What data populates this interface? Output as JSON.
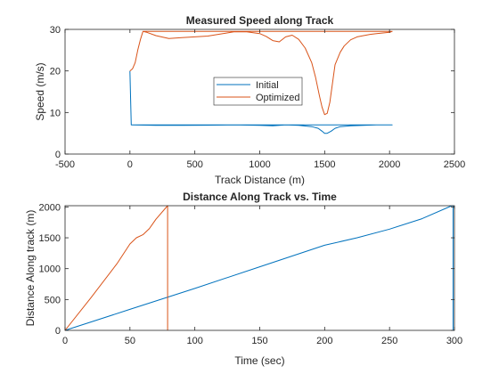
{
  "figure": {
    "background": "#ffffff",
    "colors": {
      "initial": "#0072BD",
      "optimized": "#D95319",
      "axis": "#262626"
    }
  },
  "chart_data": [
    {
      "type": "line",
      "title": "Measured Speed along Track",
      "xlabel": "Track Distance (m)",
      "ylabel": "Speed (m/s)",
      "xlim": [
        -500,
        2500
      ],
      "ylim": [
        0,
        30
      ],
      "xticks": [
        -500,
        0,
        500,
        1000,
        1500,
        2000,
        2500
      ],
      "yticks": [
        0,
        10,
        20,
        30
      ],
      "grid": false,
      "legend": {
        "placement": "center",
        "entries": [
          "Initial",
          "Optimized"
        ]
      },
      "series": [
        {
          "name": "Initial",
          "color": "#0072BD",
          "x": [
            0,
            10,
            2020,
            10,
            200,
            400,
            600,
            800,
            1000,
            1100,
            1200,
            1300,
            1400,
            1450,
            1480,
            1500,
            1520,
            1550,
            1580,
            1620,
            1700,
            1800,
            1900,
            2020
          ],
          "y": [
            20,
            7,
            7,
            7,
            6.9,
            6.9,
            6.95,
            7,
            6.9,
            6.8,
            7,
            6.9,
            6.6,
            6.2,
            5.5,
            5.0,
            5.0,
            5.5,
            6.2,
            6.6,
            6.8,
            6.9,
            7,
            7
          ]
        },
        {
          "name": "Optimized",
          "color": "#D95319",
          "x": [
            0,
            20,
            40,
            60,
            80,
            100,
            2020,
            100,
            130,
            200,
            300,
            400,
            500,
            600,
            700,
            800,
            900,
            1000,
            1050,
            1100,
            1150,
            1200,
            1250,
            1300,
            1350,
            1400,
            1430,
            1460,
            1480,
            1500,
            1520,
            1540,
            1560,
            1580,
            1600,
            1620,
            1650,
            1700,
            1750,
            1800,
            1850,
            1900,
            2000,
            2020
          ],
          "y": [
            20,
            20.5,
            22,
            25,
            27.5,
            29.5,
            29.5,
            29.5,
            29.3,
            28.5,
            27.8,
            28,
            28.2,
            28.4,
            28.9,
            29.4,
            29.4,
            29.0,
            28.3,
            27.3,
            27.0,
            28.2,
            28.6,
            27.6,
            25.5,
            22,
            18.5,
            14,
            11.3,
            9.5,
            9.8,
            12.5,
            17,
            21.5,
            23,
            24.5,
            26,
            27.5,
            28.2,
            28.5,
            28.8,
            29.0,
            29.3,
            29.5
          ]
        }
      ]
    },
    {
      "type": "line",
      "title": "Distance Along Track vs. Time",
      "xlabel": "Time (sec)",
      "ylabel": "Distance Along track (m)",
      "xlim": [
        0,
        300
      ],
      "ylim": [
        0,
        2020
      ],
      "xticks": [
        0,
        50,
        100,
        150,
        200,
        250,
        300
      ],
      "yticks": [
        0,
        500,
        1000,
        1500,
        2000
      ],
      "grid": false,
      "series": [
        {
          "name": "Initial",
          "color": "#0072BD",
          "x": [
            0,
            50,
            100,
            150,
            200,
            225,
            250,
            275,
            298,
            299,
            299
          ],
          "y": [
            0,
            340,
            680,
            1030,
            1380,
            1500,
            1640,
            1810,
            2020,
            2020,
            0
          ]
        },
        {
          "name": "Optimized",
          "color": "#D95319",
          "x": [
            0,
            20,
            40,
            50,
            55,
            60,
            65,
            70,
            79,
            79
          ],
          "y": [
            0,
            530,
            1080,
            1400,
            1500,
            1550,
            1650,
            1800,
            2020,
            0
          ]
        }
      ]
    }
  ]
}
